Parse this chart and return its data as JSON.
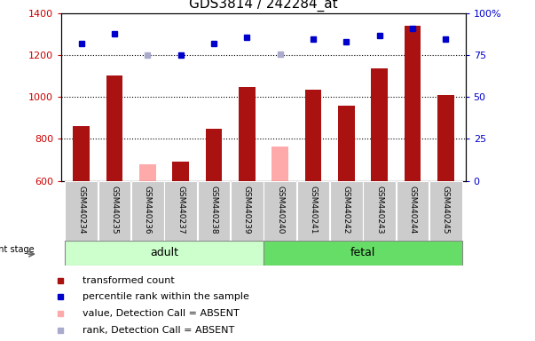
{
  "title": "GDS3814 / 242284_at",
  "samples": [
    "GSM440234",
    "GSM440235",
    "GSM440236",
    "GSM440237",
    "GSM440238",
    "GSM440239",
    "GSM440240",
    "GSM440241",
    "GSM440242",
    "GSM440243",
    "GSM440244",
    "GSM440245"
  ],
  "bar_values": [
    862,
    1103,
    680,
    690,
    848,
    1050,
    762,
    1037,
    960,
    1138,
    1340,
    1010
  ],
  "bar_absent": [
    false,
    false,
    true,
    false,
    false,
    false,
    true,
    false,
    false,
    false,
    false,
    false
  ],
  "rank_values": [
    82,
    88,
    75,
    75,
    82,
    86,
    76,
    85,
    83,
    87,
    91,
    85
  ],
  "rank_absent": [
    false,
    false,
    true,
    false,
    false,
    false,
    true,
    false,
    false,
    false,
    false,
    false
  ],
  "ylim_left": [
    600,
    1400
  ],
  "ylim_right": [
    0,
    100
  ],
  "yticks_left": [
    600,
    800,
    1000,
    1200,
    1400
  ],
  "yticks_right": [
    0,
    25,
    50,
    75,
    100
  ],
  "adult_count": 6,
  "fetal_count": 6,
  "bar_color_present": "#aa1111",
  "bar_color_absent": "#ffaaaa",
  "rank_color_present": "#0000cc",
  "rank_color_absent": "#aaaacc",
  "adult_bg": "#ccffcc",
  "fetal_bg": "#66dd66",
  "label_bg": "#cccccc",
  "bar_width": 0.5,
  "legend_items": [
    {
      "label": "transformed count",
      "color": "#aa1111"
    },
    {
      "label": "percentile rank within the sample",
      "color": "#0000cc"
    },
    {
      "label": "value, Detection Call = ABSENT",
      "color": "#ffaaaa"
    },
    {
      "label": "rank, Detection Call = ABSENT",
      "color": "#aaaacc"
    }
  ]
}
